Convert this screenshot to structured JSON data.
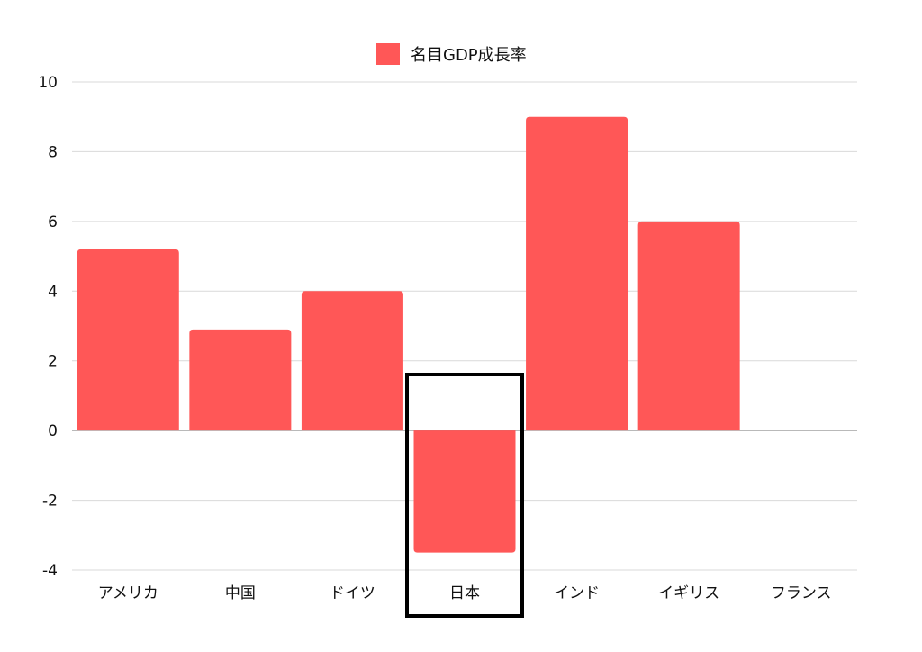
{
  "chart_data": {
    "type": "bar",
    "categories": [
      "アメリカ",
      "中国",
      "ドイツ",
      "日本",
      "インド",
      "イギリス",
      "フランス"
    ],
    "series": [
      {
        "name": "名目GDP成長率",
        "values": [
          5.2,
          2.9,
          4.0,
          -3.5,
          9.0,
          6.0,
          0
        ]
      }
    ],
    "y_ticks": [
      "10",
      "8",
      "6",
      "4",
      "2",
      "0",
      "-2",
      "-4"
    ],
    "ylim": [
      -4,
      10
    ],
    "grid": true,
    "legend_position": "top-center",
    "bar_color": "#ff5757",
    "highlighted_category": "日本"
  }
}
